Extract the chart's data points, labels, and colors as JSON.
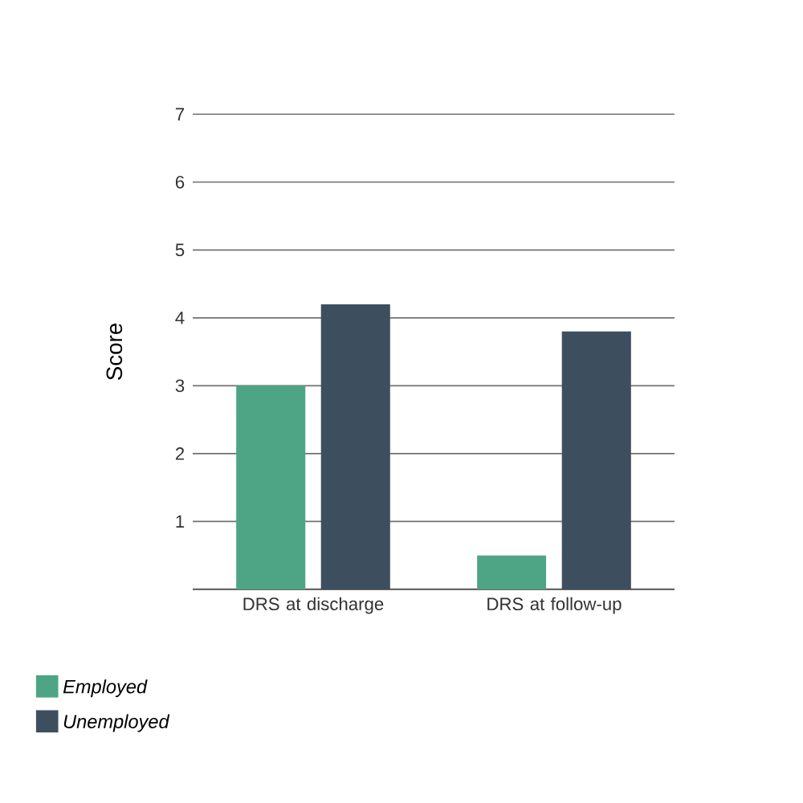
{
  "chart_data": {
    "type": "bar",
    "ylabel": "Score",
    "categories": [
      "DRS at discharge",
      "DRS at follow-up"
    ],
    "series": [
      {
        "name": "*Employed*",
        "color": "#4ea585",
        "values": [
          3.0,
          0.5
        ]
      },
      {
        "name": "*Unemployed*",
        "color": "#3d4f5f",
        "values": [
          4.2,
          3.8
        ]
      }
    ],
    "ylim": [
      0,
      7
    ],
    "yticks": [
      1,
      2,
      3,
      4,
      5,
      6,
      7
    ],
    "grid": "y",
    "legend": "bottom left"
  }
}
